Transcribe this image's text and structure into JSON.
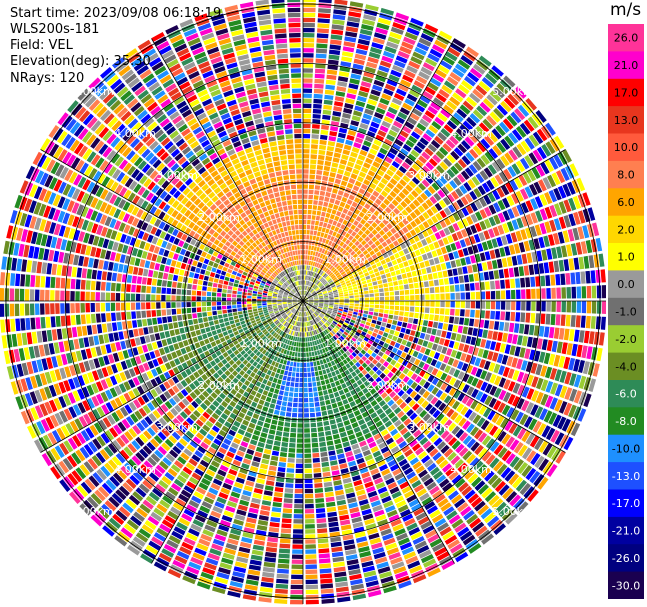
{
  "header": {
    "start_time": "Start time: 2023/09/08 06:18:19",
    "instrument": "WLS200s-181",
    "field": "Field: VEL",
    "elevation": "Elevation(deg): 35.30",
    "nrays": "NRays: 120"
  },
  "colorbar": {
    "unit": "m/s",
    "labels": [
      "26.0",
      "21.0",
      "17.0",
      "13.0",
      "10.0",
      "8.0",
      "6.0",
      "2.0",
      "1.0",
      "0.0",
      "-1.0",
      "-2.0",
      "-4.0",
      "-6.0",
      "-8.0",
      "-10.0",
      "-13.0",
      "-17.0",
      "-21.0",
      "-26.0",
      "-30.0"
    ],
    "colors": [
      "#ff3399",
      "#ff00cc",
      "#ff0000",
      "#e8361e",
      "#ff5a3c",
      "#ff7f50",
      "#ffa500",
      "#ffd700",
      "#ffff00",
      "#9a9a9a",
      "#707070",
      "#9acd32",
      "#6b8e23",
      "#2e8b57",
      "#228b22",
      "#1e90ff",
      "#1e50ff",
      "#0000ff",
      "#0000a0",
      "#000080",
      "#1a0050"
    ]
  },
  "chart_data": {
    "type": "heatmap",
    "projection": "polar PPI",
    "field": "VEL",
    "units": "m/s",
    "value_range": [
      -30,
      26
    ],
    "range_rings_km": [
      1.0,
      2.0,
      3.0,
      4.0,
      5.0
    ],
    "ring_labels": [
      "1.00km",
      "2.00km",
      "3.00km",
      "4.00km",
      "5.00km"
    ],
    "n_rays": 120,
    "max_range_km": 5.0,
    "spokes_deg": [
      0,
      30,
      60,
      90,
      120,
      150,
      180,
      210,
      240,
      270,
      300,
      330
    ],
    "regions": [
      {
        "description": "north sector",
        "r_km": [
          0.3,
          2.2
        ],
        "azimuth_deg": [
          300,
          60
        ],
        "velocity_m_s": 8.0
      },
      {
        "description": "north edge",
        "r_km": [
          2.2,
          2.8
        ],
        "azimuth_deg": [
          300,
          60
        ],
        "velocity_m_s": 6.0
      },
      {
        "description": "east-west band",
        "r_km": [
          0.0,
          2.5
        ],
        "azimuth_deg": [
          60,
          100
        ],
        "velocity_m_s": 2.0
      },
      {
        "description": "near center",
        "r_km": [
          0.0,
          0.6
        ],
        "azimuth_deg": [
          0,
          360
        ],
        "velocity_m_s": 0.0
      },
      {
        "description": "south-west",
        "r_km": [
          0.6,
          2.5
        ],
        "azimuth_deg": [
          200,
          260
        ],
        "velocity_m_s": -4.0
      },
      {
        "description": "south",
        "r_km": [
          0.6,
          2.6
        ],
        "azimuth_deg": [
          140,
          200
        ],
        "velocity_m_s": -6.0
      },
      {
        "description": "south core",
        "r_km": [
          1.0,
          2.0
        ],
        "azimuth_deg": [
          170,
          195
        ],
        "velocity_m_s": -10.0
      },
      {
        "description": "outer noise",
        "r_km": [
          2.7,
          5.1
        ],
        "azimuth_deg": [
          0,
          360
        ],
        "velocity_m_s": "random"
      }
    ]
  }
}
